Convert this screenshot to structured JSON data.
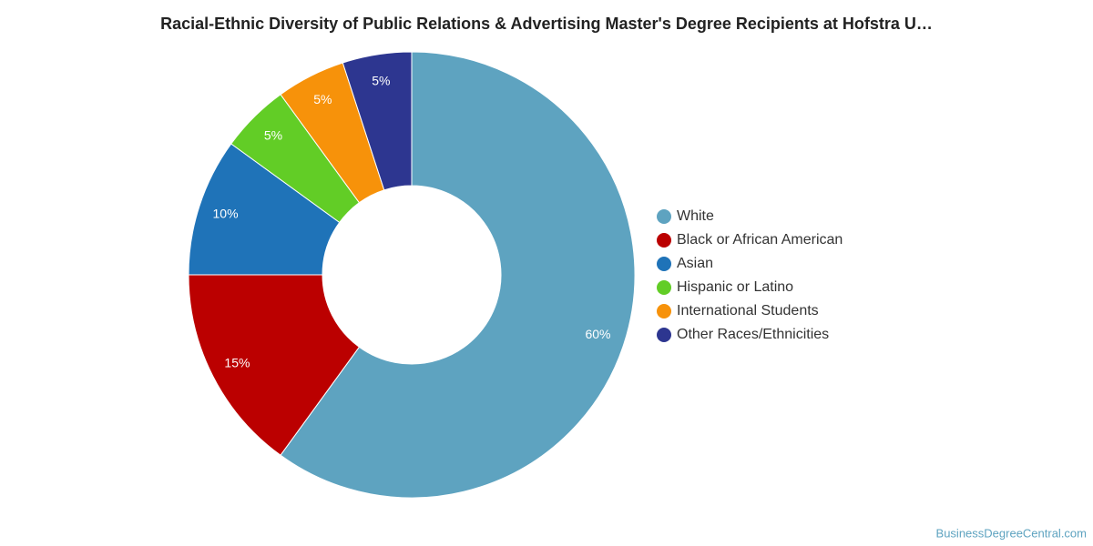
{
  "chart_data": {
    "type": "donut",
    "title": "Racial-Ethnic Diversity of Public Relations & Advertising Master's Degree Recipients at Hofstra U…",
    "categories": [
      "White",
      "Black or African American",
      "Asian",
      "Hispanic or Latino",
      "International Students",
      "Other Races/Ethnicities"
    ],
    "values": [
      60,
      15,
      10,
      5,
      5,
      5
    ],
    "value_labels": [
      "60%",
      "15%",
      "10%",
      "5%",
      "5%",
      "5%"
    ],
    "colors": [
      "#5ea3c0",
      "#bb0000",
      "#1f73b8",
      "#62cd26",
      "#f7920a",
      "#2d3690"
    ],
    "legend": "right",
    "credit": "BusinessDegreeCentral.com"
  }
}
